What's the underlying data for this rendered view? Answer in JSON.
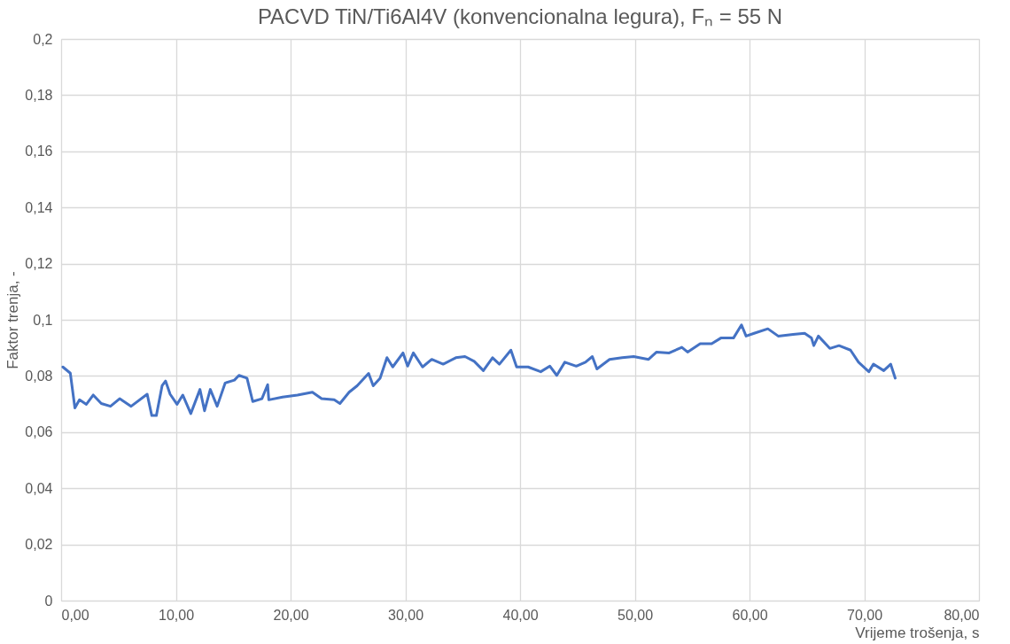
{
  "chart_data": {
    "type": "line",
    "title": "PACVD TiN/Ti6Al4V (konvencionalna legura), Fₙ = 55 N",
    "xlabel": "Vrijeme trošenja, s",
    "ylabel": "Faktor trenja, -",
    "x": [
      0.15,
      0.8,
      1.2,
      1.6,
      2.2,
      2.8,
      3.5,
      4.3,
      5.1,
      6.1,
      7.5,
      7.9,
      8.3,
      8.8,
      9.1,
      9.5,
      10.1,
      10.6,
      11.3,
      12.1,
      12.5,
      13.0,
      13.6,
      14.3,
      15.1,
      15.5,
      16.2,
      16.7,
      17.5,
      18.0,
      18.1,
      19.3,
      20.6,
      21.9,
      22.7,
      23.8,
      24.3,
      25.1,
      25.8,
      26.8,
      27.2,
      27.8,
      28.4,
      28.9,
      29.8,
      30.2,
      30.7,
      31.5,
      32.3,
      33.3,
      34.4,
      35.2,
      36.0,
      36.8,
      37.6,
      38.2,
      39.2,
      39.7,
      40.7,
      41.8,
      42.6,
      43.2,
      43.9,
      44.9,
      45.7,
      46.3,
      46.7,
      47.8,
      48.9,
      49.9,
      51.2,
      51.9,
      53.0,
      54.1,
      54.6,
      55.7,
      56.7,
      57.5,
      58.6,
      59.3,
      59.7,
      60.4,
      61.6,
      62.5,
      63.8,
      64.8,
      65.4,
      65.6,
      66.0,
      67.0,
      67.8,
      68.8,
      69.5,
      70.4,
      70.8,
      71.7,
      72.3,
      72.7
    ],
    "series": [
      {
        "color": "#4472c4",
        "values": [
          0.0832,
          0.081,
          0.0686,
          0.0715,
          0.0699,
          0.0732,
          0.0702,
          0.0692,
          0.0719,
          0.0692,
          0.0735,
          0.0659,
          0.0659,
          0.0765,
          0.0782,
          0.0735,
          0.0699,
          0.0732,
          0.0666,
          0.0752,
          0.0676,
          0.0752,
          0.0692,
          0.0775,
          0.0785,
          0.0802,
          0.0792,
          0.0709,
          0.0719,
          0.0769,
          0.0715,
          0.0725,
          0.0732,
          0.0742,
          0.0719,
          0.0715,
          0.0702,
          0.0742,
          0.0765,
          0.0809,
          0.0765,
          0.0792,
          0.0865,
          0.0832,
          0.0882,
          0.0835,
          0.0882,
          0.0832,
          0.0859,
          0.0842,
          0.0865,
          0.0869,
          0.0852,
          0.0819,
          0.0865,
          0.0842,
          0.0892,
          0.0832,
          0.0832,
          0.0815,
          0.0835,
          0.0802,
          0.0849,
          0.0835,
          0.0849,
          0.0869,
          0.0825,
          0.0859,
          0.0865,
          0.0869,
          0.0859,
          0.0885,
          0.0882,
          0.0902,
          0.0885,
          0.0915,
          0.0915,
          0.0935,
          0.0935,
          0.0982,
          0.0942,
          0.0952,
          0.0968,
          0.0942,
          0.0948,
          0.0952,
          0.0935,
          0.0908,
          0.0942,
          0.0898,
          0.0908,
          0.0892,
          0.0849,
          0.0815,
          0.0842,
          0.0819,
          0.0842,
          0.0792
        ]
      }
    ],
    "xlim": [
      0,
      80
    ],
    "ylim": [
      0,
      0.2
    ],
    "xticks": [
      {
        "value": 0,
        "label": "0,00"
      },
      {
        "value": 10,
        "label": "10,00"
      },
      {
        "value": 20,
        "label": "20,00"
      },
      {
        "value": 30,
        "label": "30,00"
      },
      {
        "value": 40,
        "label": "40,00"
      },
      {
        "value": 50,
        "label": "50,00"
      },
      {
        "value": 60,
        "label": "60,00"
      },
      {
        "value": 70,
        "label": "70,00"
      },
      {
        "value": 80,
        "label": "80,00"
      }
    ],
    "yticks": [
      0,
      {
        "value": 0.02,
        "label": "0,02"
      },
      {
        "value": 0.04,
        "label": "0,04"
      },
      {
        "value": 0.06,
        "label": "0,06"
      },
      {
        "value": 0.08,
        "label": "0,08"
      },
      {
        "value": 0.1,
        "label": "0,1"
      },
      {
        "value": 0.12,
        "label": "0,12"
      },
      {
        "value": 0.14,
        "label": "0,14"
      },
      {
        "value": 0.16,
        "label": "0,16"
      },
      {
        "value": 0.18,
        "label": "0,18"
      },
      {
        "value": 0.2,
        "label": "0,2"
      }
    ],
    "grid": true,
    "marker": "none",
    "line_style": "solid"
  }
}
